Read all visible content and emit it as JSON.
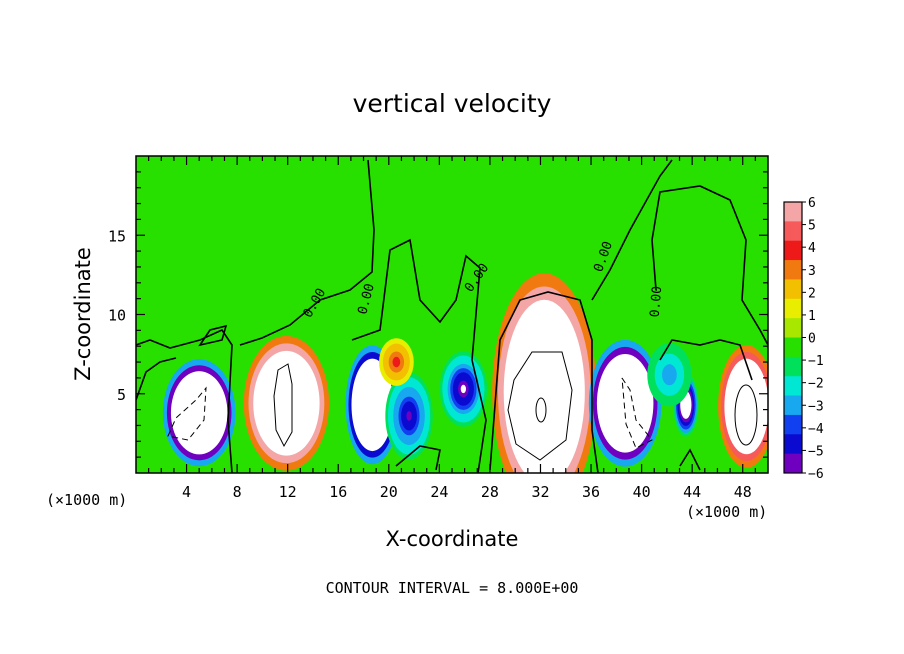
{
  "chart_data": {
    "type": "heatmap",
    "title": "vertical velocity",
    "xlabel": "X-coordinate",
    "ylabel": "Z-coordinate",
    "x_unit": "(×1000 m)",
    "xlim": [
      0,
      50
    ],
    "ylim": [
      0,
      20
    ],
    "x_ticks": [
      4,
      8,
      12,
      16,
      20,
      24,
      28,
      32,
      36,
      40,
      44,
      48
    ],
    "y_ticks": [
      5,
      10,
      15
    ],
    "colorbar": {
      "levels": [
        6,
        5,
        4,
        3,
        2,
        1,
        0,
        -1,
        -2,
        -3,
        -4,
        -5,
        -6
      ],
      "labels": [
        "6",
        "5",
        "4",
        "3",
        "2",
        "1",
        "0",
        "−1",
        "−2",
        "−3",
        "−4",
        "−5",
        "−6"
      ],
      "colors": [
        "#f4a6a6",
        "#f75a5a",
        "#ee1a1a",
        "#f07a10",
        "#f2c000",
        "#e9ee00",
        "#a8e800",
        "#28e000",
        "#00e05a",
        "#00e8d4",
        "#18a8f0",
        "#1040f0",
        "#0a0ad0",
        "#7000c0"
      ]
    },
    "contour_labels": [
      "0.00",
      "0.00",
      "0.00",
      "0.00",
      "0.00"
    ],
    "footnote": "CONTOUR INTERVAL = 8.000E+00",
    "cells": [
      {
        "x": 5.0,
        "z": 3.8,
        "rx": 2.3,
        "rz": 2.7,
        "w": -28
      },
      {
        "x": 11.9,
        "z": 4.4,
        "rx": 2.7,
        "rz": 3.4,
        "w": 28
      },
      {
        "x": 18.7,
        "z": 4.3,
        "rx": 1.7,
        "rz": 3.0,
        "w": -26
      },
      {
        "x": 21.6,
        "z": 3.6,
        "rx": 1.5,
        "rz": 2.2,
        "w": -6
      },
      {
        "x": 25.9,
        "z": 5.3,
        "rx": 1.5,
        "rz": 1.9,
        "w": -7
      },
      {
        "x": 32.3,
        "z": 5.1,
        "rx": 3.3,
        "rz": 6.0,
        "w": 32
      },
      {
        "x": 38.7,
        "z": 4.4,
        "rx": 2.3,
        "rz": 3.2,
        "w": -28
      },
      {
        "x": 43.5,
        "z": 4.3,
        "rx": 0.8,
        "rz": 1.6,
        "w": -12
      },
      {
        "x": 48.3,
        "z": 4.2,
        "rx": 1.8,
        "rz": 3.1,
        "w": 26
      },
      {
        "x": 20.6,
        "z": 7.0,
        "rx": 1.1,
        "rz": 1.2,
        "w": 4
      },
      {
        "x": 42.2,
        "z": 6.2,
        "rx": 1.4,
        "rz": 1.6,
        "w": -3
      }
    ]
  }
}
